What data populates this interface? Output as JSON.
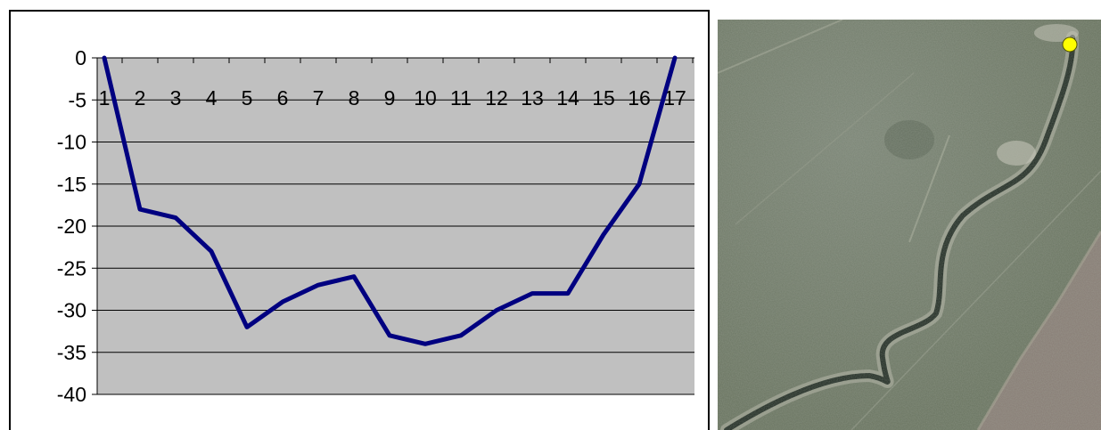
{
  "chart_data": {
    "type": "line",
    "categories": [
      "1",
      "2",
      "3",
      "4",
      "5",
      "6",
      "7",
      "8",
      "9",
      "10",
      "11",
      "12",
      "13",
      "14",
      "15",
      "16",
      "17"
    ],
    "series": [
      {
        "values": [
          0,
          -18,
          -19,
          -23,
          -32,
          -29,
          -27,
          -26,
          -33,
          -34,
          -33,
          -30,
          -28,
          -28,
          -21,
          -15,
          0
        ]
      }
    ],
    "ylim": [
      -40,
      0
    ],
    "ytick_step": 5,
    "grid": true,
    "legend": "none",
    "colors": {
      "plot_background": "#c0c0c0",
      "line": "#000080",
      "gridline": "#000000"
    }
  },
  "map": {
    "description_icon": "satellite-image",
    "marker_color": "#ffff00",
    "colors": {
      "grassland": "#6f7a6a",
      "grassland_light": "#8a9384",
      "field": "#8d7e78",
      "river": "#1f2a22",
      "riverbank": "#c9c7bb"
    }
  }
}
